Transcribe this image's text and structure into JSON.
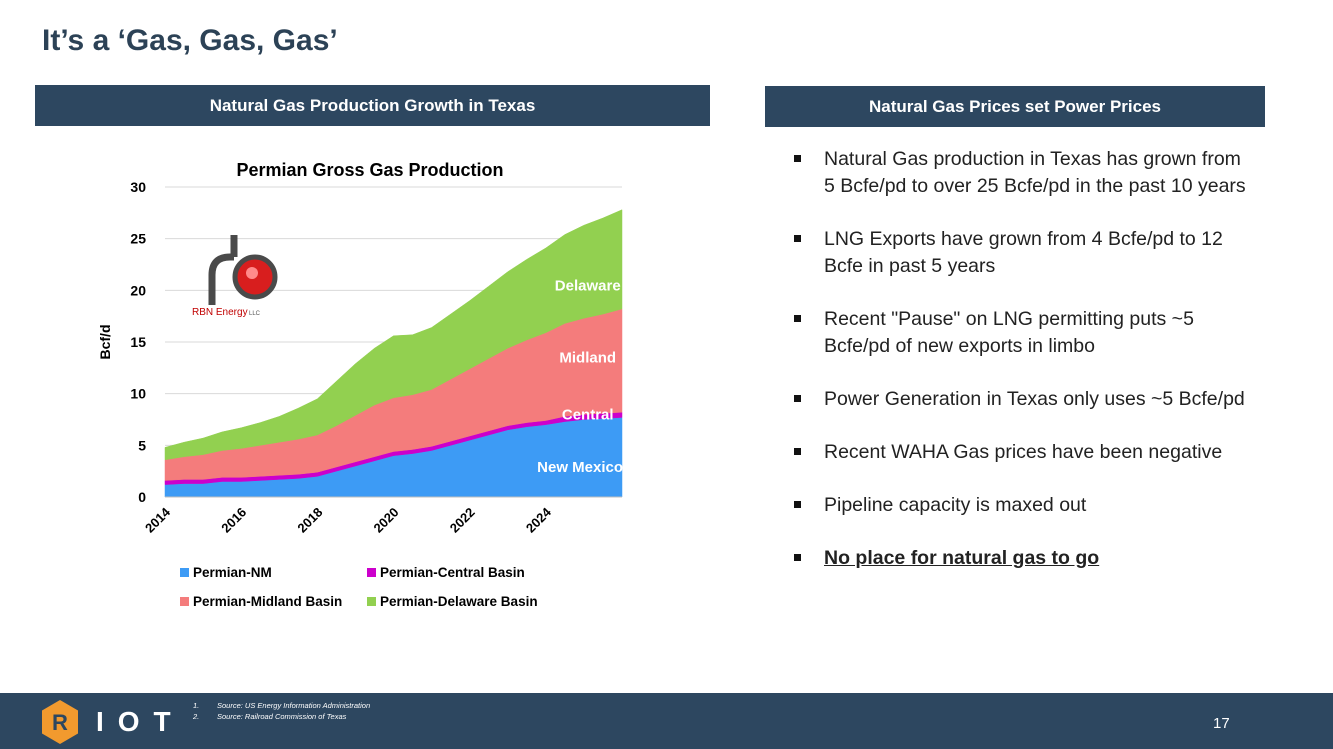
{
  "page": {
    "title": "It’s a ‘Gas, Gas, Gas’",
    "left_header": "Natural Gas Production Growth in Texas",
    "right_header": "Natural Gas Prices set Power Prices",
    "bullets": [
      "Natural Gas production in Texas has grown from 5 Bcfe/pd to over 25 Bcfe/pd in the past 10 years",
      "LNG Exports have grown from 4 Bcfe/pd to 12 Bcfe in past 5 years",
      "Recent \"Pause\" on LNG permitting puts ~5 Bcfe/pd of new exports in limbo",
      "Power Generation in Texas only uses ~5 Bcfe/pd",
      "Recent WAHA Gas prices have been negative",
      "Pipeline capacity is maxed out",
      "No place for natural gas to go"
    ],
    "bullet_bold_index": 6
  },
  "footer": {
    "logo_text": "IOT",
    "logo_letter": "R",
    "notes": [
      {
        "num": "1.",
        "text": "Source: US Energy Information Administration"
      },
      {
        "num": "2.",
        "text": "Source: Railroad Commission of Texas"
      }
    ],
    "page_number": "17",
    "accent_color": "#f29a2e"
  },
  "rbn_logo": {
    "text": "RBN Energy",
    "suffix": "LLC",
    "accent": "#d81e1e"
  },
  "chart_data": {
    "type": "area",
    "stacked": true,
    "title": "Permian Gross Gas Production",
    "ylabel": "Bcf/d",
    "xlabel": "",
    "ylim": [
      0,
      30
    ],
    "xlim": [
      2014,
      2026
    ],
    "yticks": [
      0,
      5,
      10,
      15,
      20,
      25,
      30
    ],
    "xticks": [
      "2014",
      "2016",
      "2018",
      "2020",
      "2022",
      "2024"
    ],
    "grid": "horizontal",
    "legend_position": "bottom",
    "x": [
      2014,
      2014.5,
      2015,
      2015.5,
      2016,
      2016.5,
      2017,
      2017.5,
      2018,
      2018.5,
      2019,
      2019.5,
      2020,
      2020.5,
      2021,
      2021.5,
      2022,
      2022.5,
      2023,
      2023.5,
      2024,
      2024.5,
      2025,
      2025.5,
      2026
    ],
    "series": [
      {
        "name": "Permian-NM",
        "color": "#3d9bf5",
        "values": [
          1.2,
          1.3,
          1.3,
          1.5,
          1.5,
          1.6,
          1.7,
          1.8,
          2.0,
          2.5,
          3.0,
          3.5,
          4.0,
          4.2,
          4.5,
          5.0,
          5.5,
          6.0,
          6.5,
          6.8,
          7.0,
          7.3,
          7.5,
          7.6,
          7.7
        ]
      },
      {
        "name": "Permian-Central Basin",
        "color": "#cc00cc",
        "values": [
          0.4,
          0.4,
          0.4,
          0.4,
          0.4,
          0.4,
          0.4,
          0.4,
          0.4,
          0.4,
          0.4,
          0.4,
          0.4,
          0.4,
          0.4,
          0.4,
          0.4,
          0.4,
          0.4,
          0.4,
          0.4,
          0.5,
          0.5,
          0.5,
          0.5
        ]
      },
      {
        "name": "Permian-Midland Basin",
        "color": "#f47c7c",
        "values": [
          2.0,
          2.2,
          2.4,
          2.6,
          2.8,
          3.0,
          3.2,
          3.4,
          3.6,
          4.0,
          4.5,
          5.0,
          5.2,
          5.3,
          5.5,
          6.0,
          6.5,
          7.0,
          7.5,
          8.0,
          8.5,
          9.0,
          9.3,
          9.6,
          10.0
        ]
      },
      {
        "name": "Permian-Delaware Basin",
        "color": "#92d050",
        "values": [
          1.2,
          1.4,
          1.6,
          1.8,
          2.0,
          2.2,
          2.5,
          3.0,
          3.5,
          4.3,
          5.0,
          5.5,
          6.0,
          5.8,
          6.0,
          6.3,
          6.6,
          7.0,
          7.4,
          7.8,
          8.2,
          8.6,
          9.0,
          9.3,
          9.6
        ]
      }
    ],
    "annotations": [
      {
        "text": "Delaware",
        "x": 2025.1,
        "y": 20
      },
      {
        "text": "Midland",
        "x": 2025.1,
        "y": 13
      },
      {
        "text": "Central",
        "x": 2025.1,
        "y": 7.5
      },
      {
        "text": "New Mexico",
        "x": 2024.9,
        "y": 2.4
      }
    ]
  }
}
